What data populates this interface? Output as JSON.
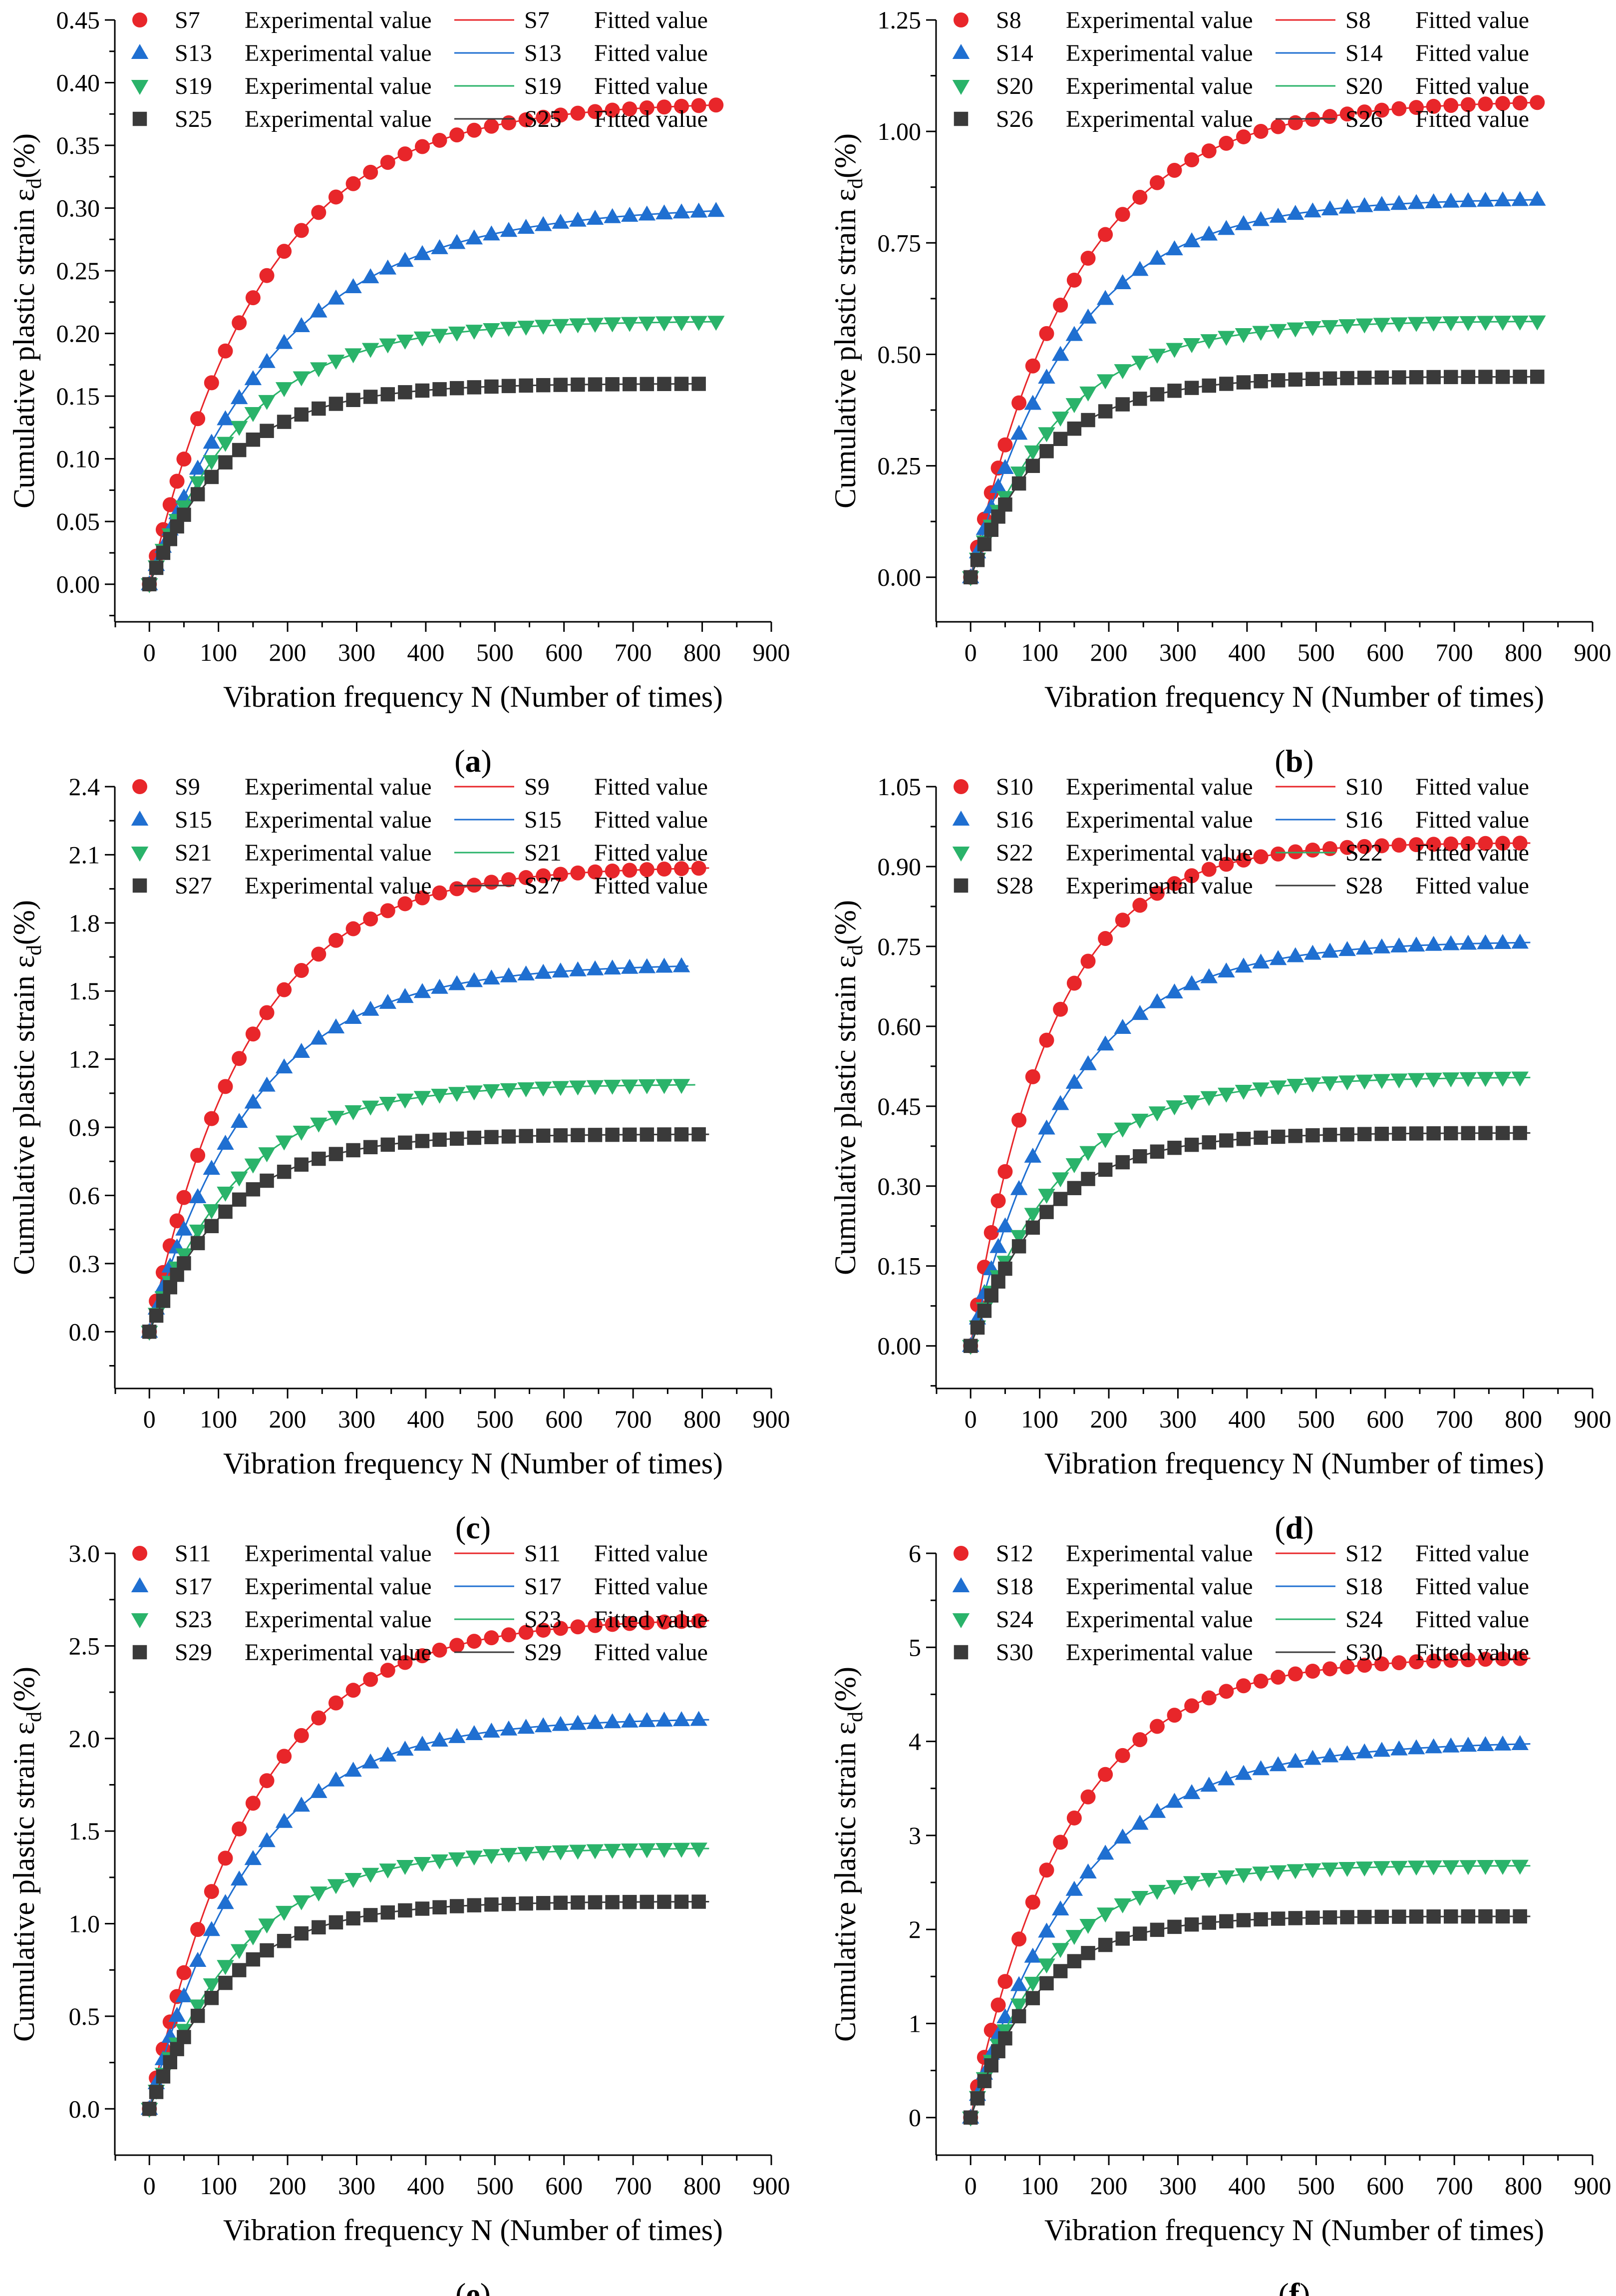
{
  "figure": {
    "y_axis_label_prefix": "Cumulative plastic strain ε",
    "y_axis_label_sub": "d",
    "y_axis_label_suffix": "(%)",
    "x_axis_label": "Vibration frequency N (Number of times)",
    "exp_suffix": "Experimental value",
    "fit_suffix": "Fitted value"
  },
  "colors": [
    "#e8262a",
    "#1f6fd1",
    "#2ab36a",
    "#3a3a3a"
  ],
  "marker_shapes": [
    "circle-marker",
    "triangle-up-marker",
    "triangle-down-marker",
    "square-marker"
  ],
  "chart_data": [
    {
      "type": "scatter",
      "panel": "(a)",
      "title": "",
      "xlabel": "Vibration frequency N (Number of times)",
      "ylabel": "Cumulative plastic strain εd (%)",
      "xlim": [
        -50,
        900
      ],
      "ylim": [
        -0.03,
        0.45
      ],
      "x_ticks": [
        0,
        100,
        200,
        300,
        400,
        500,
        600,
        700,
        800,
        900
      ],
      "y_ticks": [
        0.0,
        0.05,
        0.1,
        0.15,
        0.2,
        0.25,
        0.3,
        0.35,
        0.4,
        0.45
      ],
      "y_decimals": 2,
      "series": [
        {
          "name": "S7",
          "max": 0.385,
          "rate": 0.006,
          "x_end": 820
        },
        {
          "name": "S13",
          "max": 0.302,
          "rate": 0.0052,
          "x_end": 820
        },
        {
          "name": "S19",
          "max": 0.21,
          "rate": 0.007,
          "x_end": 820
        },
        {
          "name": "S25",
          "max": 0.16,
          "rate": 0.0085,
          "x_end": 800
        }
      ]
    },
    {
      "type": "scatter",
      "panel": "(b)",
      "title": "",
      "xlabel": "Vibration frequency N (Number of times)",
      "ylabel": "Cumulative plastic strain εd (%)",
      "xlim": [
        -50,
        900
      ],
      "ylim": [
        -0.1,
        1.25
      ],
      "x_ticks": [
        0,
        100,
        200,
        300,
        400,
        500,
        600,
        700,
        800,
        900
      ],
      "y_ticks": [
        0.0,
        0.25,
        0.5,
        0.75,
        1.0,
        1.25
      ],
      "y_decimals": 2,
      "series": [
        {
          "name": "S8",
          "max": 1.07,
          "rate": 0.0065,
          "x_end": 820
        },
        {
          "name": "S14",
          "max": 0.85,
          "rate": 0.0068,
          "x_end": 820
        },
        {
          "name": "S20",
          "max": 0.575,
          "rate": 0.0075,
          "x_end": 820
        },
        {
          "name": "S26",
          "max": 0.45,
          "rate": 0.009,
          "x_end": 820
        }
      ]
    },
    {
      "type": "scatter",
      "panel": "(c)",
      "title": "",
      "xlabel": "Vibration frequency N (Number of times)",
      "ylabel": "Cumulative plastic strain εd (%)",
      "xlim": [
        -50,
        900
      ],
      "ylim": [
        -0.25,
        2.4
      ],
      "x_ticks": [
        0,
        100,
        200,
        300,
        400,
        500,
        600,
        700,
        800,
        900
      ],
      "y_ticks": [
        0.0,
        0.3,
        0.6,
        0.9,
        1.2,
        1.5,
        1.8,
        2.1,
        2.4
      ],
      "y_decimals": 1,
      "series": [
        {
          "name": "S9",
          "max": 2.05,
          "rate": 0.0068,
          "x_end": 810
        },
        {
          "name": "S15",
          "max": 1.62,
          "rate": 0.0065,
          "x_end": 780
        },
        {
          "name": "S21",
          "max": 1.09,
          "rate": 0.0075,
          "x_end": 790
        },
        {
          "name": "S27",
          "max": 0.87,
          "rate": 0.0085,
          "x_end": 810
        }
      ]
    },
    {
      "type": "scatter",
      "panel": "(d)",
      "title": "",
      "xlabel": "Vibration frequency N (Number of times)",
      "ylabel": "Cumulative plastic strain εd (%)",
      "xlim": [
        -50,
        900
      ],
      "ylim": [
        -0.08,
        1.05
      ],
      "x_ticks": [
        0,
        100,
        200,
        300,
        400,
        500,
        600,
        700,
        800,
        900
      ],
      "y_ticks": [
        0.0,
        0.15,
        0.3,
        0.45,
        0.6,
        0.75,
        0.9,
        1.05
      ],
      "y_decimals": 2,
      "series": [
        {
          "name": "S10",
          "max": 0.945,
          "rate": 0.0085,
          "x_end": 810
        },
        {
          "name": "S16",
          "max": 0.76,
          "rate": 0.007,
          "x_end": 810
        },
        {
          "name": "S22",
          "max": 0.505,
          "rate": 0.0075,
          "x_end": 810
        },
        {
          "name": "S28",
          "max": 0.4,
          "rate": 0.009,
          "x_end": 810
        }
      ]
    },
    {
      "type": "scatter",
      "panel": "(e)",
      "title": "",
      "xlabel": "Vibration frequency N (Number of times)",
      "ylabel": "Cumulative plastic strain εd (%)",
      "xlim": [
        -50,
        900
      ],
      "ylim": [
        -0.25,
        3.0
      ],
      "x_ticks": [
        0,
        100,
        200,
        300,
        400,
        500,
        600,
        700,
        800,
        900
      ],
      "y_ticks": [
        0.0,
        0.5,
        1.0,
        1.5,
        2.0,
        2.5,
        3.0
      ],
      "y_decimals": 1,
      "series": [
        {
          "name": "S11",
          "max": 2.65,
          "rate": 0.0065,
          "x_end": 810
        },
        {
          "name": "S17",
          "max": 2.11,
          "rate": 0.0068,
          "x_end": 810
        },
        {
          "name": "S23",
          "max": 1.41,
          "rate": 0.0072,
          "x_end": 810
        },
        {
          "name": "S29",
          "max": 1.12,
          "rate": 0.0085,
          "x_end": 810
        }
      ]
    },
    {
      "type": "scatter",
      "panel": "(f)",
      "title": "",
      "xlabel": "Vibration frequency N (Number of times)",
      "ylabel": "Cumulative plastic strain εd (%)",
      "xlim": [
        -50,
        900
      ],
      "ylim": [
        -0.4,
        6
      ],
      "x_ticks": [
        0,
        100,
        200,
        300,
        400,
        500,
        600,
        700,
        800,
        900
      ],
      "y_ticks": [
        0,
        1,
        2,
        3,
        4,
        5,
        6
      ],
      "y_decimals": 0,
      "series": [
        {
          "name": "S12",
          "max": 4.9,
          "rate": 0.007,
          "x_end": 810
        },
        {
          "name": "S18",
          "max": 4.0,
          "rate": 0.0062,
          "x_end": 810
        },
        {
          "name": "S24",
          "max": 2.68,
          "rate": 0.0085,
          "x_end": 810
        },
        {
          "name": "S30",
          "max": 2.14,
          "rate": 0.01,
          "x_end": 810
        }
      ]
    }
  ]
}
